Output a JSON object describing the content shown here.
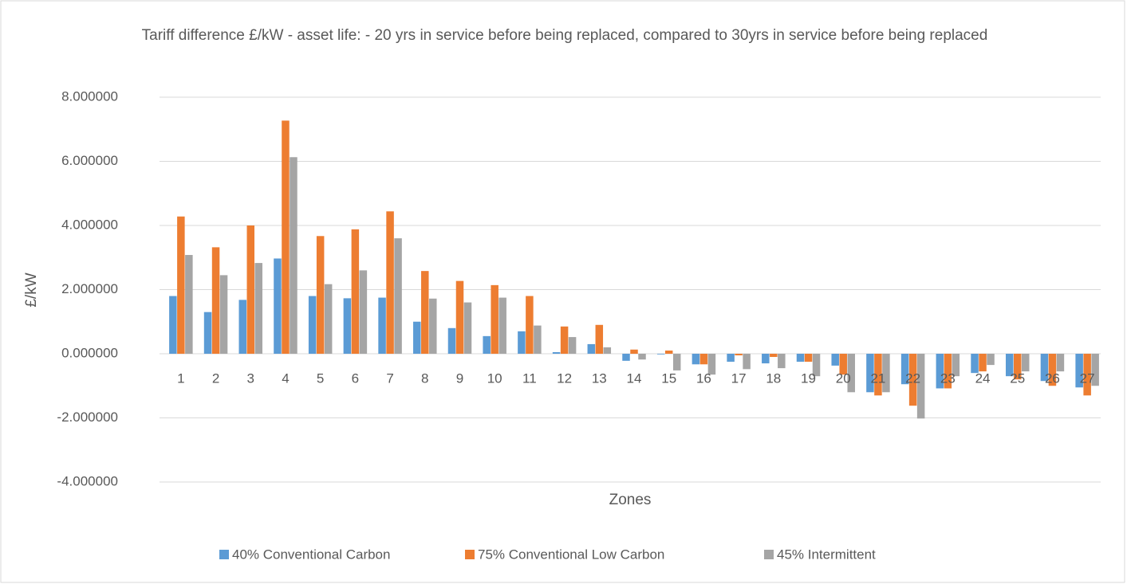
{
  "chart_data": {
    "type": "bar",
    "title": "Tariff difference £/kW - asset life: - 20 yrs in service before being replaced, compared to 30yrs in service before being replaced",
    "y_label": "£/kW",
    "x_label": "Zones",
    "categories": [
      "1",
      "2",
      "3",
      "4",
      "5",
      "6",
      "7",
      "8",
      "9",
      "10",
      "11",
      "12",
      "13",
      "14",
      "15",
      "16",
      "17",
      "18",
      "19",
      "20",
      "21",
      "22",
      "23",
      "24",
      "25",
      "26",
      "27"
    ],
    "series": [
      {
        "name": "40% Conventional Carbon",
        "color": "#5b9bd5",
        "values": [
          1.8,
          1.3,
          1.68,
          2.97,
          1.8,
          1.73,
          1.75,
          1.0,
          0.8,
          0.55,
          0.7,
          0.05,
          0.3,
          -0.22,
          -0.02,
          -0.33,
          -0.25,
          -0.3,
          -0.25,
          -0.37,
          -1.2,
          -0.95,
          -1.08,
          -0.6,
          -0.7,
          -0.85,
          -1.05
        ]
      },
      {
        "name": "75% Conventional Low Carbon",
        "color": "#ed7d31",
        "values": [
          4.28,
          3.32,
          4.0,
          7.27,
          3.67,
          3.88,
          4.44,
          2.58,
          2.27,
          2.14,
          1.8,
          0.85,
          0.9,
          0.13,
          0.1,
          -0.33,
          -0.05,
          -0.1,
          -0.25,
          -0.65,
          -1.3,
          -1.62,
          -1.08,
          -0.55,
          -0.8,
          -1.0,
          -1.3
        ]
      },
      {
        "name": "45% Intermittent",
        "color": "#a5a5a5",
        "values": [
          3.08,
          2.45,
          2.83,
          6.13,
          2.17,
          2.6,
          3.6,
          1.72,
          1.6,
          1.75,
          0.88,
          0.52,
          0.2,
          -0.18,
          -0.52,
          -0.65,
          -0.48,
          -0.45,
          -0.7,
          -1.2,
          -1.2,
          -2.02,
          -0.7,
          -0.35,
          -0.55,
          -0.55,
          -1.0
        ]
      }
    ],
    "ylim": [
      -4,
      8
    ],
    "yticks": [
      {
        "value": -4,
        "label": "-4.000000"
      },
      {
        "value": -2,
        "label": "-2.000000"
      },
      {
        "value": 0,
        "label": "0.000000"
      },
      {
        "value": 2,
        "label": "2.000000"
      },
      {
        "value": 4,
        "label": "4.000000"
      },
      {
        "value": 6,
        "label": "6.000000"
      },
      {
        "value": 8,
        "label": "8.000000"
      }
    ],
    "grid": true,
    "legend": "bottom"
  }
}
